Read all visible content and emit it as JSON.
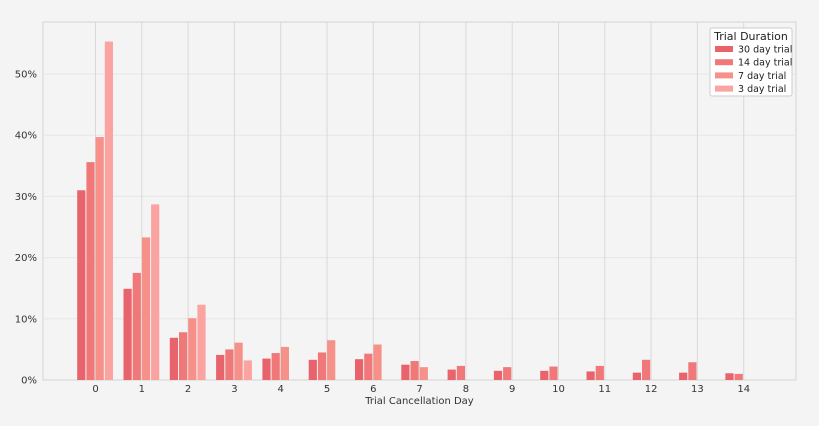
{
  "chart_data": {
    "type": "bar",
    "title": "",
    "xlabel": "Trial Cancellation Day",
    "ylabel": "",
    "categories": [
      "0",
      "1",
      "2",
      "3",
      "4",
      "5",
      "6",
      "7",
      "8",
      "9",
      "10",
      "11",
      "12",
      "13",
      "14"
    ],
    "y_ticks": [
      "0%",
      "10%",
      "20%",
      "30%",
      "40%",
      "50%"
    ],
    "ylim": [
      0,
      58
    ],
    "grid": true,
    "legend": {
      "title": "Trial Duration",
      "placement": "top-right"
    },
    "series": [
      {
        "name": "30 day trial",
        "color": "#e8636b",
        "values": [
          31.0,
          14.9,
          6.9,
          4.1,
          3.5,
          3.3,
          3.4,
          2.5,
          1.7,
          1.5,
          1.5,
          1.4,
          1.2,
          1.2,
          1.1
        ]
      },
      {
        "name": "14 day trial",
        "color": "#f07878",
        "values": [
          35.6,
          17.5,
          7.8,
          5.0,
          4.4,
          4.5,
          4.3,
          3.1,
          2.3,
          2.1,
          2.2,
          2.3,
          3.3,
          2.9,
          1.0
        ]
      },
      {
        "name": "7 day trial",
        "color": "#f6918a",
        "values": [
          39.7,
          23.3,
          10.1,
          6.1,
          5.4,
          6.5,
          5.8,
          2.1,
          null,
          null,
          null,
          null,
          null,
          null,
          null
        ]
      },
      {
        "name": "3 day trial",
        "color": "#fba3a0",
        "values": [
          55.3,
          28.7,
          12.3,
          3.2,
          null,
          null,
          null,
          null,
          null,
          null,
          null,
          null,
          null,
          null,
          null
        ]
      }
    ]
  }
}
